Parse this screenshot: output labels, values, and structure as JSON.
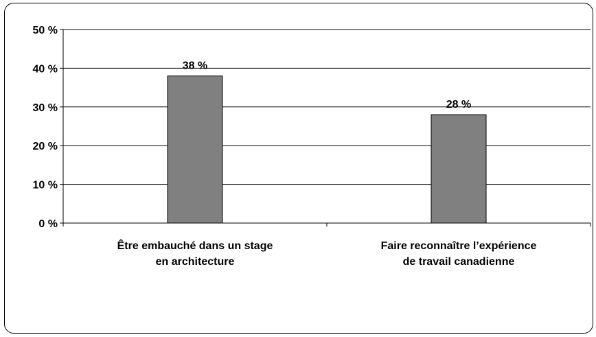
{
  "chart_data": {
    "type": "bar",
    "categories": [
      [
        "Être embauché dans un stage",
        "en architecture"
      ],
      [
        "Faire reconnaître  l’expérience",
        "de travail canadienne"
      ]
    ],
    "values": [
      38,
      28
    ],
    "value_labels": [
      "38 %",
      "28 %"
    ],
    "ylim": [
      0,
      50
    ],
    "yticks": [
      0,
      10,
      20,
      30,
      40,
      50
    ],
    "ytick_labels": [
      "0 %",
      "10 %",
      "20 %",
      "30 %",
      "40 %",
      "50 %"
    ],
    "grid": true,
    "bar_color": "#808080",
    "title": "",
    "xlabel": "",
    "ylabel": ""
  }
}
